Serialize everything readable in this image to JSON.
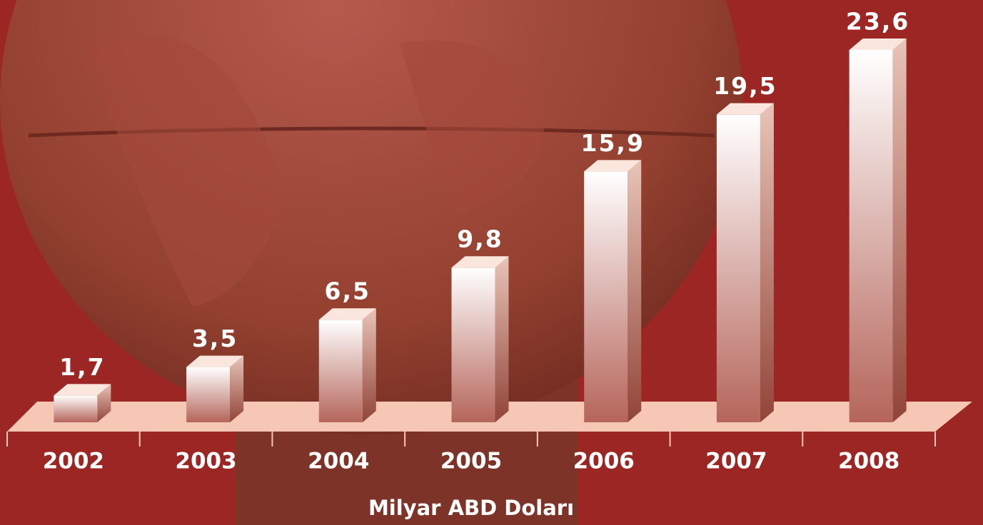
{
  "chart_data": {
    "type": "bar3d",
    "categories": [
      "2002",
      "2003",
      "2004",
      "2005",
      "2006",
      "2007",
      "2008"
    ],
    "values": [
      1.7,
      3.5,
      6.5,
      9.8,
      15.9,
      19.5,
      23.6
    ],
    "value_labels": [
      "1,7",
      "3,5",
      "6,5",
      "9,8",
      "15,9",
      "19,5",
      "23,6"
    ],
    "x_label": "Milyar ABD Doları"
  }
}
